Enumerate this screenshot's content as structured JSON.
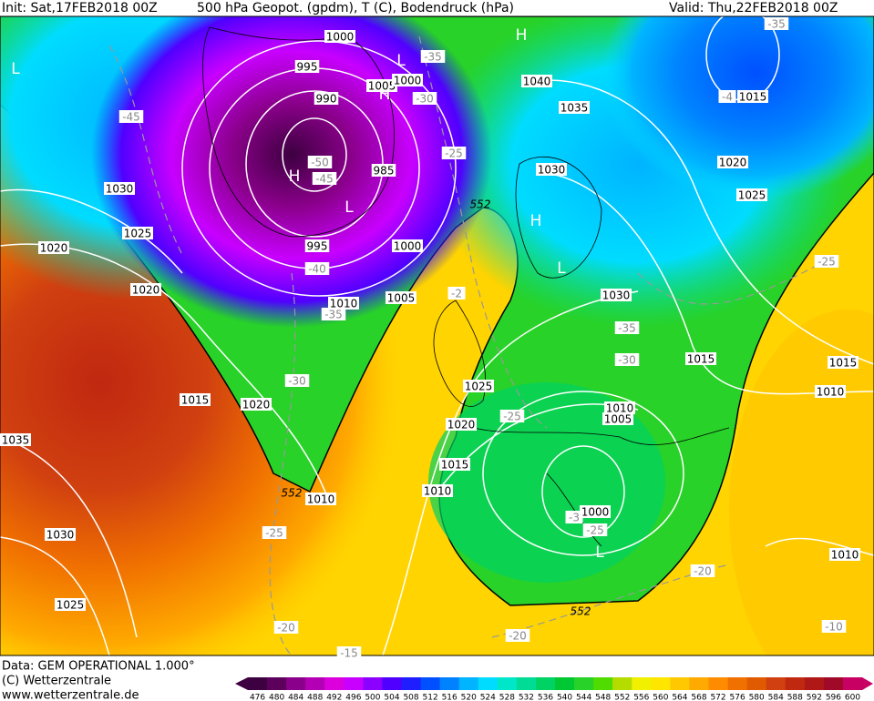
{
  "header": {
    "init": "Init: Sat,17FEB2018 00Z",
    "title": "500 hPa Geopot. (gpdm), T (C), Bodendruck (hPa)",
    "valid": "Valid: Thu,22FEB2018 00Z"
  },
  "footer": {
    "source": "Data: GEM OPERATIONAL 1.000°",
    "copyright": "(C) Wetterzentrale",
    "website": "www.wetterzentrale.de"
  },
  "colorbar": {
    "labels": [
      476,
      480,
      484,
      488,
      492,
      496,
      500,
      504,
      508,
      512,
      516,
      520,
      524,
      528,
      532,
      536,
      540,
      544,
      548,
      552,
      556,
      560,
      564,
      568,
      572,
      576,
      580,
      584,
      588,
      592,
      596,
      600
    ],
    "colors": [
      "#3d0040",
      "#5c005c",
      "#8a008a",
      "#b400b4",
      "#dc00dc",
      "#c800ff",
      "#8c00ff",
      "#5000ff",
      "#1e1eff",
      "#0050ff",
      "#0082ff",
      "#00b4ff",
      "#00dcff",
      "#00e6c8",
      "#00dc96",
      "#00d264",
      "#00c832",
      "#28d228",
      "#50dc00",
      "#b4dc00",
      "#f0f000",
      "#ffe600",
      "#ffc800",
      "#ffaa00",
      "#ff8c00",
      "#f07000",
      "#e05a00",
      "#d04010",
      "#c02810",
      "#b01818",
      "#a00a28",
      "#c80064"
    ]
  },
  "isobar_labels": [
    "1000",
    "995",
    "990",
    "1005",
    "1000",
    "985",
    "995",
    "1000",
    "1010",
    "1005",
    "1030",
    "1025",
    "1020",
    "1020",
    "1015",
    "1020",
    "1035",
    "1010",
    "1030",
    "1025",
    "1040",
    "1035",
    "1030",
    "1030",
    "1015",
    "1025",
    "1020",
    "1010",
    "1005",
    "1015",
    "1010",
    "1000",
    "1015",
    "1020",
    "1025",
    "1015",
    "1010",
    "1010"
  ],
  "temperature_labels": [
    "-45",
    "-35",
    "-30",
    "-25",
    "-40",
    "-35",
    "-30",
    "-2",
    "-50",
    "-45",
    "-4",
    "-35",
    "-35",
    "-30",
    "-25",
    "-25",
    "-25",
    "-20",
    "-20",
    "-20",
    "-10",
    "-3",
    "-25",
    "-15"
  ],
  "height_labels": [
    "552",
    "552",
    "552"
  ],
  "pressure_centers": [
    "L",
    "H",
    "L",
    "H",
    "H",
    "L",
    "H",
    "L",
    "L"
  ]
}
